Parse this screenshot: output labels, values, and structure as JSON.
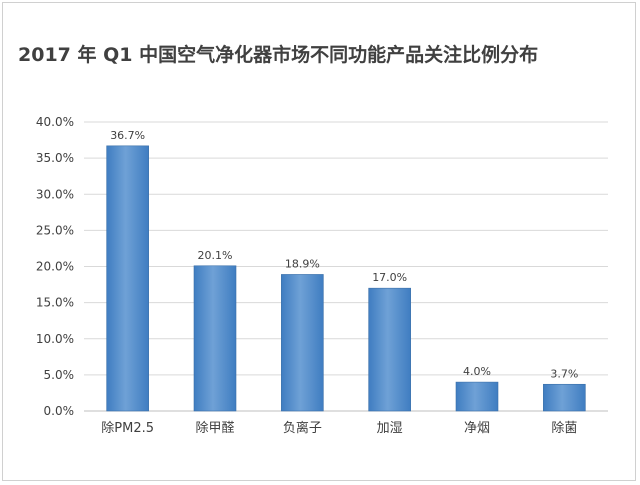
{
  "chart_data": {
    "type": "bar",
    "title": "2017 年 Q1 中国空气净化器市场不同功能产品关注比例分布",
    "xlabel": "",
    "ylabel": "",
    "categories": [
      "除PM2.5",
      "除甲醛",
      "负离子",
      "加湿",
      "净烟",
      "除菌"
    ],
    "values": [
      36.7,
      20.1,
      18.9,
      17.0,
      4.0,
      3.7
    ],
    "data_labels": [
      "36.7%",
      "20.1%",
      "18.9%",
      "17.0%",
      "4.0%",
      "3.7%"
    ],
    "ylim": [
      0,
      40
    ],
    "yticks": [
      "0.0%",
      "5.0%",
      "10.0%",
      "15.0%",
      "20.0%",
      "25.0%",
      "30.0%",
      "35.0%",
      "40.0%"
    ],
    "grid": true,
    "legend": "none",
    "colors": {
      "bar": "#4a86c5",
      "bar_light": "#6fa1d6",
      "grid": "#d9d9d9",
      "axis": "#bfbfbf",
      "text": "#404040"
    }
  }
}
